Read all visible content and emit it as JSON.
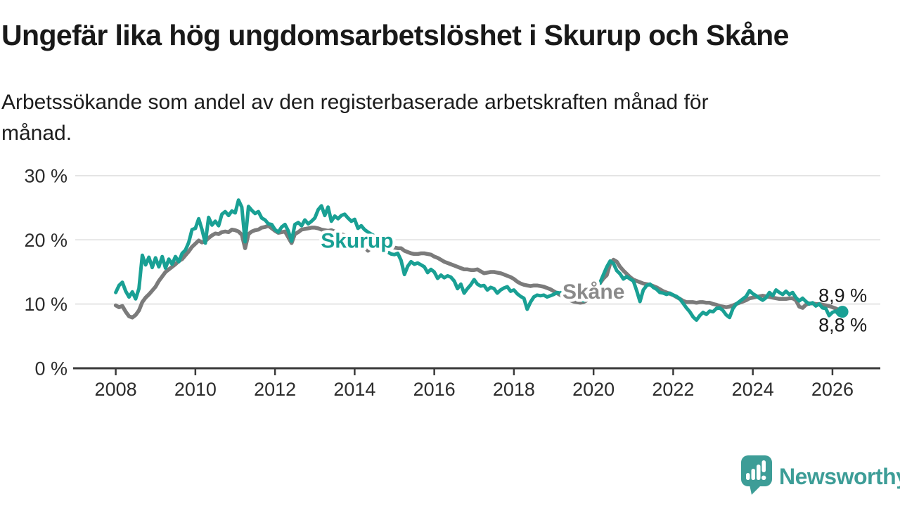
{
  "page": {
    "title": "Ungefär lika hög ungdomsarbetslöshet i Skurup och Skåne",
    "subtitle_lines": [
      "Arbetssökande som andel av den registerbaserade arbetskraften månad för",
      "månad."
    ]
  },
  "brand": {
    "name": "Newsworthy"
  },
  "colors": {
    "skurup_line": "#19a094",
    "skane_line": "#7b7b7b",
    "skane_label": "#8a8a8a",
    "axis": "#3a3a3a",
    "grid": "#dcdcdc",
    "text_dark": "#191919",
    "axis_text": "#2d2d2d",
    "brand_teal": "#3d9d97"
  },
  "chart_data": {
    "type": "line",
    "title": "Ungefär lika hög ungdomsarbetslöshet i Skurup och Skåne",
    "subtitle": "Arbetssökande som andel av den registerbaserade arbetskraften månad för månad.",
    "x_axis": {
      "ticks": [
        2008,
        2010,
        2012,
        2014,
        2016,
        2018,
        2020,
        2022,
        2024,
        2026
      ],
      "range": [
        2008,
        2026.25
      ]
    },
    "y_axis": {
      "ticks": [
        0,
        10,
        20,
        30
      ],
      "suffix": " %",
      "range": [
        0,
        32
      ],
      "grid": true
    },
    "legend_position": "inline-labels",
    "series": [
      {
        "name": "Skåne",
        "color": "#7b7b7b",
        "width": 5.5,
        "label": {
          "text": "Skåne",
          "year": 2019.22,
          "value": 10.84,
          "color": "#8a8a8a"
        },
        "end_label": {
          "text": "8,9 %",
          "dy": -13
        },
        "end_dot": false,
        "start_year": 2008,
        "points_per_year": 12,
        "values": [
          9.8,
          9.5,
          9.7,
          8.8,
          8.1,
          7.9,
          8.3,
          9.0,
          10.3,
          11.0,
          11.5,
          12.1,
          12.7,
          13.6,
          14.3,
          15.0,
          15.4,
          15.8,
          16.2,
          16.7,
          17.0,
          17.6,
          18.2,
          18.9,
          19.4,
          19.9,
          19.6,
          19.8,
          20.3,
          20.7,
          21.0,
          20.9,
          21.2,
          21.3,
          21.2,
          21.6,
          21.5,
          21.3,
          20.8,
          18.7,
          20.9,
          21.3,
          21.5,
          21.6,
          21.9,
          22.0,
          22.2,
          21.8,
          21.4,
          21.1,
          21.2,
          21.3,
          20.4,
          19.5,
          20.9,
          21.2,
          21.6,
          21.7,
          21.8,
          21.9,
          21.9,
          21.8,
          21.6,
          21.5,
          21.4,
          21.5,
          21.3,
          21.1,
          20.9,
          20.7,
          20.5,
          20.3,
          20.1,
          19.8,
          19.5,
          18.9,
          18.3,
          18.8,
          19.1,
          19.0,
          18.9,
          18.8,
          18.8,
          18.9,
          18.8,
          18.7,
          18.7,
          18.3,
          18.1,
          17.9,
          17.8,
          17.8,
          17.9,
          17.9,
          17.8,
          17.7,
          17.4,
          17.2,
          16.9,
          16.6,
          16.4,
          16.2,
          16.0,
          15.8,
          15.6,
          15.4,
          15.4,
          15.3,
          15.3,
          15.4,
          15.1,
          14.8,
          14.9,
          15.0,
          15.0,
          14.9,
          14.8,
          14.6,
          14.4,
          14.2,
          13.9,
          13.5,
          13.2,
          13.0,
          12.9,
          12.8,
          12.9,
          12.9,
          12.8,
          12.7,
          12.5,
          12.3,
          12.0,
          11.7,
          11.4,
          11.1,
          10.8,
          10.6,
          10.4,
          10.3,
          10.2,
          10.3,
          10.6,
          11.0,
          11.6,
          12.4,
          13.3,
          14.0,
          14.5,
          16.3,
          16.9,
          16.6,
          15.8,
          15.2,
          14.7,
          14.2,
          13.8,
          13.6,
          13.4,
          13.2,
          13.1,
          13.0,
          12.8,
          12.6,
          12.3,
          12.0,
          11.8,
          11.6,
          11.4,
          11.1,
          10.8,
          10.5,
          10.3,
          10.3,
          10.3,
          10.2,
          10.3,
          10.3,
          10.2,
          10.2,
          10.0,
          9.9,
          9.7,
          9.6,
          9.5,
          9.6,
          9.8,
          10.0,
          10.2,
          10.4,
          10.6,
          10.9,
          11.0,
          11.1,
          11.2,
          11.3,
          11.2,
          11.1,
          11.0,
          10.9,
          10.8,
          10.8,
          10.8,
          10.9,
          10.9,
          10.6,
          9.6,
          9.4,
          9.9,
          10.1,
          10.1,
          10.0,
          10.0,
          9.9,
          9.8,
          9.7,
          9.5,
          9.3,
          9.1,
          8.9
        ]
      },
      {
        "name": "Skurup",
        "color": "#19a094",
        "width": 5,
        "label": {
          "text": "Skurup",
          "year": 2013.15,
          "value": 18.8,
          "color": "#19a094"
        },
        "end_label": {
          "text": "8,8 %",
          "dy": 28
        },
        "end_dot": true,
        "start_year": 2008,
        "points_per_year": 12,
        "values": [
          11.8,
          12.9,
          13.4,
          12.0,
          11.1,
          11.9,
          10.8,
          12.4,
          17.6,
          16.1,
          17.3,
          15.7,
          17.2,
          15.8,
          17.4,
          15.6,
          17.0,
          16.2,
          17.4,
          16.6,
          17.9,
          18.4,
          19.6,
          21.6,
          21.8,
          23.3,
          21.6,
          19.5,
          23.5,
          22.3,
          22.9,
          22.2,
          24.0,
          24.4,
          23.8,
          24.5,
          24.2,
          26.2,
          25.1,
          19.7,
          25.2,
          24.6,
          24.1,
          24.4,
          23.4,
          23.1,
          22.5,
          22.4,
          21.6,
          21.2,
          22.0,
          22.4,
          21.4,
          19.8,
          22.4,
          22.7,
          22.2,
          23.1,
          22.5,
          22.9,
          23.4,
          24.7,
          25.3,
          23.8,
          25.1,
          22.9,
          23.7,
          23.3,
          23.8,
          24.0,
          23.4,
          22.9,
          23.2,
          21.8,
          22.2,
          21.6,
          21.2,
          20.9,
          20.6,
          20.3,
          20.0,
          19.7,
          18.1,
          17.8,
          17.7,
          17.9,
          16.8,
          14.6,
          15.9,
          16.6,
          16.2,
          16.4,
          16.1,
          15.8,
          14.9,
          15.4,
          15.0,
          14.0,
          14.5,
          14.1,
          14.4,
          14.2,
          13.6,
          12.4,
          13.1,
          11.7,
          12.4,
          13.0,
          13.8,
          13.1,
          12.8,
          12.9,
          12.2,
          12.6,
          12.4,
          11.7,
          12.2,
          12.5,
          12.7,
          12.0,
          12.2,
          11.6,
          11.2,
          10.9,
          9.2,
          10.3,
          11.1,
          11.4,
          11.3,
          11.4,
          11.1,
          11.3,
          11.5,
          11.8,
          11.7,
          12.0,
          11.7,
          11.6,
          11.3,
          11.1,
          10.7,
          10.5,
          10.8,
          11.0,
          11.2,
          11.9,
          13.4,
          14.6,
          15.8,
          16.7,
          16.3,
          15.2,
          14.7,
          13.9,
          14.3,
          13.9,
          13.6,
          12.1,
          10.4,
          12.2,
          12.9,
          13.1,
          12.6,
          12.3,
          11.8,
          11.7,
          11.5,
          11.7,
          11.4,
          11.2,
          10.8,
          10.1,
          9.4,
          8.8,
          8.0,
          7.5,
          8.2,
          8.7,
          8.4,
          8.9,
          8.8,
          9.3,
          9.4,
          9.0,
          8.3,
          7.9,
          9.3,
          10.0,
          10.4,
          10.8,
          11.2,
          12.1,
          11.6,
          11.3,
          10.9,
          10.6,
          11.0,
          11.8,
          11.3,
          12.2,
          11.8,
          11.5,
          12.0,
          11.5,
          11.8,
          11.0,
          10.5,
          10.9,
          10.4,
          10.0,
          10.2,
          9.7,
          10.0,
          9.4,
          9.3,
          8.2,
          8.7,
          8.9,
          8.3,
          8.8
        ]
      }
    ],
    "end_values": {
      "Skurup": "8,8 %",
      "Skåne": "8,9 %"
    }
  }
}
